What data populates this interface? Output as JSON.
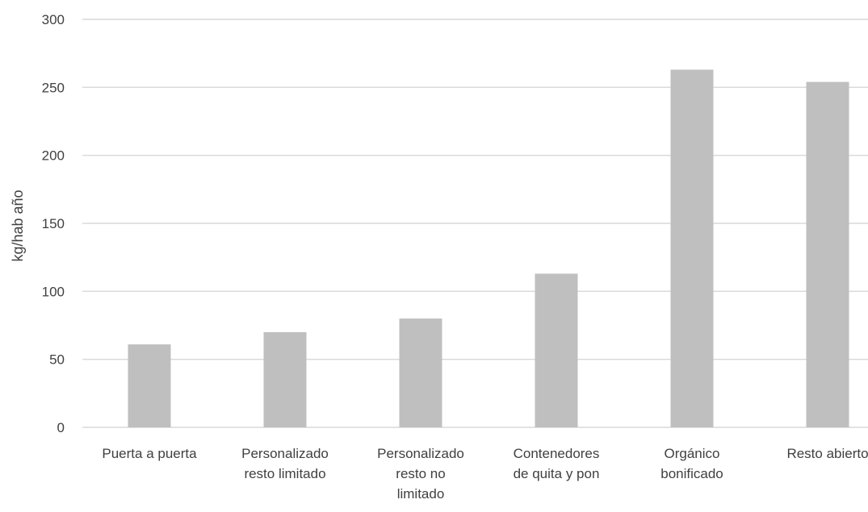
{
  "chart_data": {
    "type": "bar",
    "title": "",
    "xlabel": "",
    "ylabel": "kg/hab año",
    "categories": [
      [
        "Puerta a puerta"
      ],
      [
        "Personalizado",
        "resto limitado"
      ],
      [
        "Personalizado",
        "resto no",
        "limitado"
      ],
      [
        "Contenedores",
        "de quita y pon"
      ],
      [
        "Orgánico",
        "bonificado"
      ],
      [
        "Resto abierto"
      ]
    ],
    "values": [
      61,
      70,
      80,
      113,
      263,
      254
    ],
    "ylim": [
      0,
      300
    ],
    "yticks": [
      "0",
      "50",
      "100",
      "150",
      "200",
      "250",
      "300"
    ],
    "grid": true,
    "legend": "none",
    "colors": {
      "bar": "#bfbfbf",
      "grid": "#d9d9d9",
      "text": "#404040"
    }
  }
}
